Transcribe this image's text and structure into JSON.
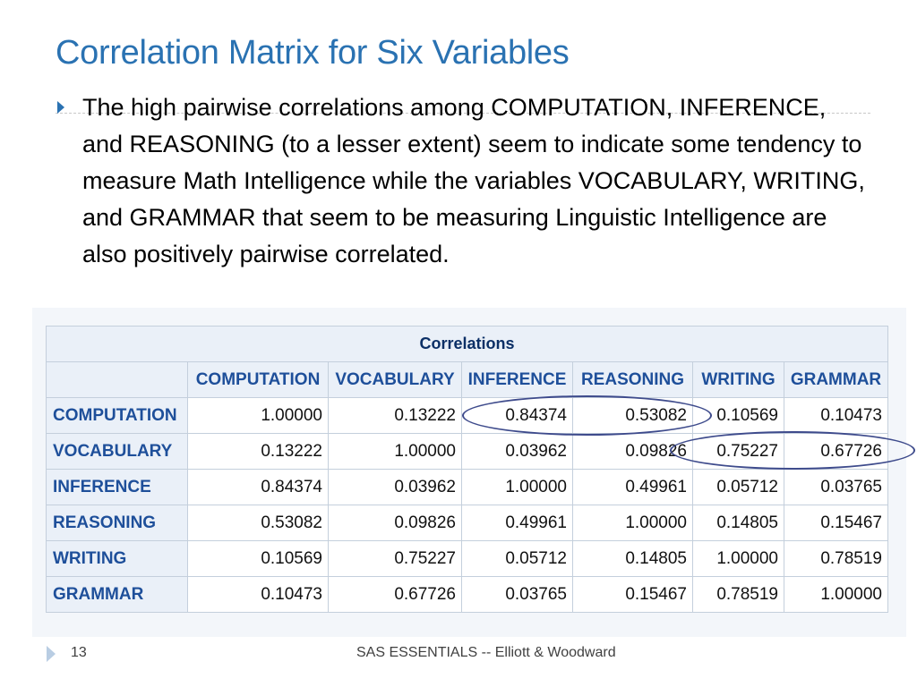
{
  "slide": {
    "title": "Correlation Matrix for Six Variables",
    "bullet": "The high pairwise correlations among COMPUTATION, INFERENCE, and REASONING (to a lesser extent) seem to indicate some tendency to measure Math Intelligence while the variables VOCABULARY, WRITING, and GRAMMAR that seem to be measuring Linguistic Intelligence are also positively pairwise correlated.",
    "accent_color": "#2a72b2",
    "bullet_icon": "right-triangle-icon"
  },
  "table": {
    "caption": "Correlations",
    "columns": [
      "COMPUTATION",
      "VOCABULARY",
      "INFERENCE",
      "REASONING",
      "WRITING",
      "GRAMMAR"
    ],
    "rows": [
      {
        "label": "COMPUTATION",
        "values": [
          "1.00000",
          "0.13222",
          "0.84374",
          "0.53082",
          "0.10569",
          "0.10473"
        ]
      },
      {
        "label": "VOCABULARY",
        "values": [
          "0.13222",
          "1.00000",
          "0.03962",
          "0.09826",
          "0.75227",
          "0.67726"
        ]
      },
      {
        "label": "INFERENCE",
        "values": [
          "0.84374",
          "0.03962",
          "1.00000",
          "0.49961",
          "0.05712",
          "0.03765"
        ]
      },
      {
        "label": "REASONING",
        "values": [
          "0.53082",
          "0.09826",
          "0.49961",
          "1.00000",
          "0.14805",
          "0.15467"
        ]
      },
      {
        "label": "WRITING",
        "values": [
          "0.10569",
          "0.75227",
          "0.05712",
          "0.14805",
          "1.00000",
          "0.78519"
        ]
      },
      {
        "label": "GRAMMAR",
        "values": [
          "0.10473",
          "0.67726",
          "0.03765",
          "0.15467",
          "0.78519",
          "1.00000"
        ]
      }
    ],
    "highlight_color": "#3e4b8c"
  },
  "footer": {
    "slide_number": "13",
    "text": "SAS ESSENTIALS -- Elliott & Woodward"
  }
}
